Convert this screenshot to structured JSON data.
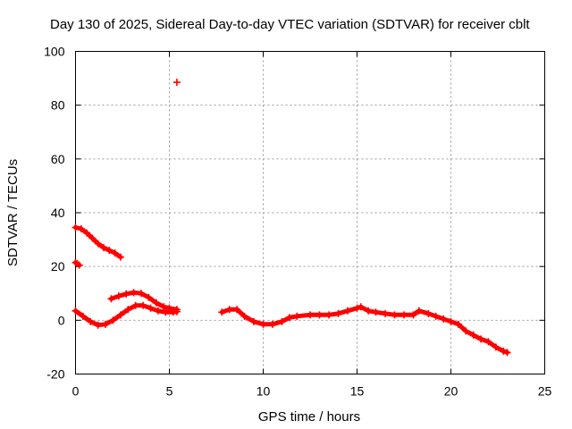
{
  "chart_data": {
    "type": "scatter",
    "title": "Day 130 of 2025, Sidereal Day-to-day VTEC variation (SDTVAR) for receiver cblt",
    "xlabel": "GPS time / hours",
    "ylabel": "SDTVAR / TECUs",
    "xlim": [
      0,
      25
    ],
    "ylim": [
      -20,
      100
    ],
    "xticks": [
      0,
      5,
      10,
      15,
      20,
      25
    ],
    "yticks": [
      -20,
      0,
      20,
      40,
      60,
      80,
      100
    ],
    "grid": true,
    "marker": "plus",
    "series": [
      {
        "name": "SDTVAR",
        "color": "#ff0000",
        "segments": [
          {
            "name": "upper-early-arc",
            "points": [
              [
                0.0,
                34.5
              ],
              [
                0.3,
                34.0
              ],
              [
                0.6,
                32.5
              ],
              [
                0.9,
                30.5
              ],
              [
                1.2,
                28.5
              ],
              [
                1.5,
                27.0
              ],
              [
                1.8,
                26.0
              ],
              [
                2.1,
                25.0
              ],
              [
                2.4,
                23.5
              ]
            ]
          },
          {
            "name": "short-cluster-at-20",
            "points": [
              [
                0.0,
                21.5
              ],
              [
                0.1,
                21.0
              ],
              [
                0.2,
                20.5
              ]
            ]
          },
          {
            "name": "hump-upper",
            "points": [
              [
                1.9,
                8.0
              ],
              [
                2.3,
                9.0
              ],
              [
                2.7,
                9.8
              ],
              [
                3.1,
                10.3
              ],
              [
                3.5,
                10.0
              ],
              [
                3.9,
                8.5
              ],
              [
                4.3,
                6.5
              ],
              [
                4.7,
                5.0
              ],
              [
                5.0,
                4.5
              ],
              [
                5.4,
                4.0
              ]
            ]
          },
          {
            "name": "hump-lower",
            "points": [
              [
                0.0,
                3.5
              ],
              [
                0.4,
                1.5
              ],
              [
                0.8,
                -0.5
              ],
              [
                1.2,
                -1.8
              ],
              [
                1.6,
                -1.5
              ],
              [
                2.0,
                0.0
              ],
              [
                2.4,
                2.0
              ],
              [
                2.8,
                4.0
              ],
              [
                3.2,
                5.5
              ],
              [
                3.6,
                5.5
              ],
              [
                4.0,
                4.5
              ],
              [
                4.4,
                3.5
              ],
              [
                4.8,
                3.0
              ],
              [
                5.2,
                3.0
              ],
              [
                5.4,
                3.2
              ]
            ]
          },
          {
            "name": "outlier",
            "points": [
              [
                5.4,
                88.5
              ]
            ]
          },
          {
            "name": "main-trace",
            "points": [
              [
                7.8,
                3.0
              ],
              [
                8.2,
                4.0
              ],
              [
                8.6,
                4.0
              ],
              [
                9.0,
                1.5
              ],
              [
                9.5,
                -0.5
              ],
              [
                10.0,
                -1.5
              ],
              [
                10.5,
                -1.5
              ],
              [
                11.0,
                -0.5
              ],
              [
                11.4,
                1.0
              ],
              [
                11.8,
                1.5
              ],
              [
                12.5,
                2.0
              ],
              [
                13.0,
                2.0
              ],
              [
                13.5,
                2.0
              ],
              [
                14.0,
                2.5
              ],
              [
                14.5,
                3.5
              ],
              [
                15.0,
                4.5
              ],
              [
                15.2,
                5.0
              ],
              [
                15.6,
                3.5
              ],
              [
                16.0,
                3.0
              ],
              [
                16.5,
                2.5
              ],
              [
                17.0,
                2.0
              ],
              [
                17.5,
                2.0
              ],
              [
                18.0,
                2.0
              ],
              [
                18.3,
                3.5
              ],
              [
                18.8,
                2.5
              ],
              [
                19.2,
                1.5
              ],
              [
                19.6,
                0.5
              ],
              [
                20.0,
                -0.5
              ],
              [
                20.4,
                -1.5
              ],
              [
                20.8,
                -4.0
              ],
              [
                21.2,
                -5.5
              ],
              [
                21.6,
                -7.0
              ],
              [
                22.0,
                -8.0
              ],
              [
                22.4,
                -10.0
              ],
              [
                22.8,
                -11.5
              ],
              [
                23.0,
                -12.0
              ]
            ]
          }
        ]
      }
    ]
  }
}
